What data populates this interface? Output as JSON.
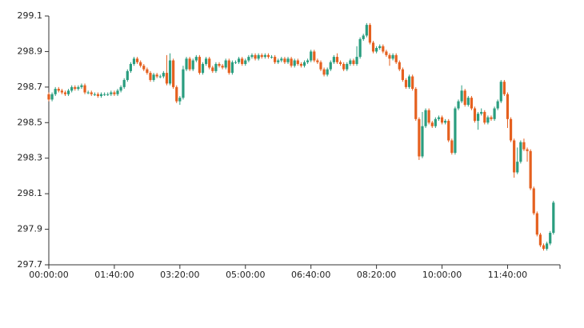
{
  "chart_data": {
    "type": "candlestick",
    "up_color": "#2a9d7f",
    "down_color": "#e5601f",
    "xlim": [
      "00:00:00",
      "13:00:00"
    ],
    "xticks": [
      "00:00:00",
      "01:40:00",
      "03:20:00",
      "05:00:00",
      "06:40:00",
      "08:20:00",
      "10:00:00",
      "11:40:00"
    ],
    "ylim": [
      297.7,
      299.1
    ],
    "yticks": [
      297.7,
      297.9,
      298.1,
      298.3,
      298.5,
      298.7,
      298.9,
      299.1
    ],
    "x": [
      "00:00:00",
      "00:05:00",
      "00:10:00",
      "00:15:00",
      "00:20:00",
      "00:25:00",
      "00:30:00",
      "00:35:00",
      "00:40:00",
      "00:45:00",
      "00:50:00",
      "00:55:00",
      "01:00:00",
      "01:05:00",
      "01:10:00",
      "01:15:00",
      "01:20:00",
      "01:25:00",
      "01:30:00",
      "01:35:00",
      "01:40:00",
      "01:45:00",
      "01:50:00",
      "01:55:00",
      "02:00:00",
      "02:05:00",
      "02:10:00",
      "02:15:00",
      "02:20:00",
      "02:25:00",
      "02:30:00",
      "02:35:00",
      "02:40:00",
      "02:45:00",
      "02:50:00",
      "02:55:00",
      "03:00:00",
      "03:05:00",
      "03:10:00",
      "03:15:00",
      "03:20:00",
      "03:25:00",
      "03:30:00",
      "03:35:00",
      "03:40:00",
      "03:45:00",
      "03:50:00",
      "03:55:00",
      "04:00:00",
      "04:05:00",
      "04:10:00",
      "04:15:00",
      "04:20:00",
      "04:25:00",
      "04:30:00",
      "04:35:00",
      "04:40:00",
      "04:45:00",
      "04:50:00",
      "04:55:00",
      "05:00:00",
      "05:05:00",
      "05:10:00",
      "05:15:00",
      "05:20:00",
      "05:25:00",
      "05:30:00",
      "05:35:00",
      "05:40:00",
      "05:45:00",
      "05:50:00",
      "05:55:00",
      "06:00:00",
      "06:05:00",
      "06:10:00",
      "06:15:00",
      "06:20:00",
      "06:25:00",
      "06:30:00",
      "06:35:00",
      "06:40:00",
      "06:45:00",
      "06:50:00",
      "06:55:00",
      "07:00:00",
      "07:05:00",
      "07:10:00",
      "07:15:00",
      "07:20:00",
      "07:25:00",
      "07:30:00",
      "07:35:00",
      "07:40:00",
      "07:45:00",
      "07:50:00",
      "07:55:00",
      "08:00:00",
      "08:05:00",
      "08:10:00",
      "08:15:00",
      "08:20:00",
      "08:25:00",
      "08:30:00",
      "08:35:00",
      "08:40:00",
      "08:45:00",
      "08:50:00",
      "08:55:00",
      "09:00:00",
      "09:05:00",
      "09:10:00",
      "09:15:00",
      "09:20:00",
      "09:25:00",
      "09:30:00",
      "09:35:00",
      "09:40:00",
      "09:45:00",
      "09:50:00",
      "09:55:00",
      "10:00:00",
      "10:05:00",
      "10:10:00",
      "10:15:00",
      "10:20:00",
      "10:25:00",
      "10:30:00",
      "10:35:00",
      "10:40:00",
      "10:45:00",
      "10:50:00",
      "10:55:00",
      "11:00:00",
      "11:05:00",
      "11:10:00",
      "11:15:00",
      "11:20:00",
      "11:25:00",
      "11:30:00",
      "11:35:00",
      "11:40:00",
      "11:45:00",
      "11:50:00",
      "11:55:00",
      "12:00:00",
      "12:05:00",
      "12:10:00",
      "12:15:00",
      "12:20:00",
      "12:25:00",
      "12:30:00",
      "12:35:00",
      "12:40:00",
      "12:45:00",
      "12:50:00"
    ],
    "open": [
      298.66,
      298.63,
      298.66,
      298.69,
      298.68,
      298.67,
      298.66,
      298.68,
      298.7,
      298.69,
      298.7,
      298.71,
      298.67,
      298.67,
      298.66,
      298.66,
      298.65,
      298.66,
      298.66,
      298.66,
      298.67,
      298.66,
      298.68,
      298.7,
      298.74,
      298.79,
      298.83,
      298.86,
      298.84,
      298.82,
      298.8,
      298.78,
      298.74,
      298.77,
      298.76,
      298.76,
      298.78,
      298.72,
      298.85,
      298.7,
      298.62,
      298.64,
      298.8,
      298.86,
      298.8,
      298.85,
      298.87,
      298.78,
      298.83,
      298.86,
      298.81,
      298.79,
      298.83,
      298.82,
      298.81,
      298.85,
      298.78,
      298.84,
      298.84,
      298.86,
      298.83,
      298.85,
      298.87,
      298.88,
      298.86,
      298.88,
      298.87,
      298.88,
      298.87,
      298.87,
      298.84,
      298.85,
      298.86,
      298.84,
      298.86,
      298.82,
      298.85,
      298.83,
      298.82,
      298.84,
      298.85,
      298.9,
      298.85,
      298.84,
      298.8,
      298.77,
      298.8,
      298.84,
      298.87,
      298.84,
      298.83,
      298.8,
      298.83,
      298.85,
      298.83,
      298.87,
      298.97,
      298.99,
      299.05,
      298.95,
      298.9,
      298.92,
      298.93,
      298.9,
      298.88,
      298.86,
      298.88,
      298.84,
      298.8,
      298.74,
      298.7,
      298.76,
      298.69,
      298.52,
      298.31,
      298.48,
      298.57,
      298.5,
      298.48,
      298.52,
      298.53,
      298.5,
      298.51,
      298.4,
      298.33,
      298.58,
      298.62,
      298.68,
      298.6,
      298.64,
      298.58,
      298.51,
      298.55,
      298.56,
      298.5,
      298.53,
      298.52,
      298.58,
      298.62,
      298.73,
      298.66,
      298.52,
      298.4,
      298.22,
      298.28,
      298.39,
      298.35,
      298.34,
      298.13,
      297.99,
      297.87,
      297.81,
      297.79,
      297.82,
      297.88
    ],
    "high": [
      298.67,
      298.67,
      298.7,
      298.7,
      298.69,
      298.68,
      298.69,
      298.71,
      298.71,
      298.71,
      298.72,
      298.72,
      298.68,
      298.68,
      298.67,
      298.67,
      298.67,
      298.67,
      298.67,
      298.68,
      298.68,
      298.69,
      298.71,
      298.75,
      298.8,
      298.84,
      298.87,
      298.87,
      298.85,
      298.83,
      298.81,
      298.79,
      298.78,
      298.78,
      298.77,
      298.79,
      298.88,
      298.89,
      298.86,
      298.71,
      298.65,
      298.82,
      298.87,
      298.87,
      298.86,
      298.88,
      298.88,
      298.84,
      298.87,
      298.87,
      298.82,
      298.84,
      298.84,
      298.83,
      298.86,
      298.86,
      298.85,
      298.85,
      298.87,
      298.87,
      298.86,
      298.88,
      298.89,
      298.89,
      298.89,
      298.89,
      298.89,
      298.89,
      298.88,
      298.88,
      298.86,
      298.87,
      298.87,
      298.87,
      298.87,
      298.86,
      298.86,
      298.84,
      298.85,
      298.86,
      298.91,
      298.91,
      298.86,
      298.85,
      298.81,
      298.81,
      298.85,
      298.88,
      298.89,
      298.85,
      298.84,
      298.84,
      298.86,
      298.86,
      298.93,
      298.98,
      299.0,
      299.06,
      299.06,
      298.96,
      298.93,
      298.94,
      298.94,
      298.91,
      298.89,
      298.89,
      298.89,
      298.85,
      298.81,
      298.75,
      298.77,
      298.77,
      298.7,
      298.53,
      298.56,
      298.58,
      298.58,
      298.51,
      298.53,
      298.54,
      298.54,
      298.52,
      298.52,
      298.41,
      298.59,
      298.63,
      298.71,
      298.69,
      298.65,
      298.65,
      298.59,
      298.56,
      298.58,
      298.57,
      298.54,
      298.54,
      298.59,
      298.63,
      298.74,
      298.74,
      298.67,
      298.53,
      298.41,
      298.36,
      298.4,
      298.41,
      298.36,
      298.35,
      298.14,
      298.0,
      297.88,
      297.82,
      297.83,
      297.89,
      298.06
    ],
    "low": [
      298.62,
      298.62,
      298.65,
      298.67,
      298.66,
      298.65,
      298.65,
      298.67,
      298.68,
      298.68,
      298.69,
      298.66,
      298.66,
      298.65,
      298.65,
      298.64,
      298.64,
      298.65,
      298.65,
      298.65,
      298.65,
      298.65,
      298.67,
      298.69,
      298.73,
      298.78,
      298.82,
      298.83,
      298.81,
      298.79,
      298.77,
      298.73,
      298.73,
      298.75,
      298.75,
      298.75,
      298.71,
      298.71,
      298.69,
      298.61,
      298.6,
      298.63,
      298.79,
      298.79,
      298.79,
      298.84,
      298.77,
      298.77,
      298.82,
      298.8,
      298.78,
      298.78,
      298.81,
      298.8,
      298.8,
      298.77,
      298.77,
      298.83,
      298.83,
      298.82,
      298.82,
      298.84,
      298.86,
      298.85,
      298.85,
      298.86,
      298.86,
      298.86,
      298.86,
      298.83,
      298.83,
      298.84,
      298.83,
      298.83,
      298.81,
      298.81,
      298.82,
      298.81,
      298.81,
      298.83,
      298.84,
      298.84,
      298.83,
      298.79,
      298.76,
      298.76,
      298.79,
      298.83,
      298.83,
      298.82,
      298.79,
      298.79,
      298.82,
      298.82,
      298.82,
      298.86,
      298.96,
      298.98,
      298.94,
      298.89,
      298.89,
      298.91,
      298.89,
      298.87,
      298.82,
      298.85,
      298.83,
      298.79,
      298.73,
      298.69,
      298.69,
      298.68,
      298.51,
      298.29,
      298.3,
      298.47,
      298.49,
      298.47,
      298.47,
      298.51,
      298.49,
      298.49,
      298.39,
      298.32,
      298.32,
      298.57,
      298.61,
      298.59,
      298.59,
      298.57,
      298.5,
      298.46,
      298.54,
      298.49,
      298.49,
      298.51,
      298.51,
      298.57,
      298.61,
      298.65,
      298.47,
      298.39,
      298.19,
      298.21,
      298.27,
      298.34,
      298.28,
      298.12,
      297.98,
      297.86,
      297.8,
      297.78,
      297.78,
      297.81,
      297.87
    ],
    "close": [
      298.63,
      298.66,
      298.69,
      298.68,
      298.67,
      298.66,
      298.68,
      298.7,
      298.69,
      298.7,
      298.71,
      298.67,
      298.67,
      298.66,
      298.66,
      298.65,
      298.66,
      298.66,
      298.66,
      298.67,
      298.66,
      298.68,
      298.7,
      298.74,
      298.79,
      298.83,
      298.86,
      298.84,
      298.82,
      298.8,
      298.78,
      298.74,
      298.77,
      298.76,
      298.76,
      298.78,
      298.72,
      298.85,
      298.7,
      298.62,
      298.64,
      298.8,
      298.86,
      298.8,
      298.85,
      298.87,
      298.78,
      298.83,
      298.86,
      298.81,
      298.79,
      298.83,
      298.82,
      298.81,
      298.85,
      298.78,
      298.84,
      298.84,
      298.86,
      298.83,
      298.85,
      298.87,
      298.88,
      298.86,
      298.88,
      298.87,
      298.88,
      298.87,
      298.87,
      298.84,
      298.85,
      298.86,
      298.84,
      298.86,
      298.82,
      298.85,
      298.83,
      298.82,
      298.84,
      298.85,
      298.9,
      298.85,
      298.84,
      298.8,
      298.77,
      298.8,
      298.84,
      298.87,
      298.84,
      298.83,
      298.8,
      298.83,
      298.85,
      298.83,
      298.87,
      298.97,
      298.99,
      299.05,
      298.95,
      298.9,
      298.92,
      298.93,
      298.9,
      298.88,
      298.86,
      298.88,
      298.84,
      298.8,
      298.74,
      298.7,
      298.76,
      298.69,
      298.52,
      298.31,
      298.48,
      298.57,
      298.5,
      298.48,
      298.52,
      298.53,
      298.5,
      298.51,
      298.4,
      298.33,
      298.58,
      298.62,
      298.68,
      298.6,
      298.64,
      298.58,
      298.51,
      298.55,
      298.56,
      298.5,
      298.53,
      298.52,
      298.58,
      298.62,
      298.73,
      298.66,
      298.52,
      298.4,
      298.22,
      298.28,
      298.39,
      298.35,
      298.34,
      298.13,
      297.99,
      297.87,
      297.81,
      297.79,
      297.82,
      297.88,
      298.05
    ]
  }
}
